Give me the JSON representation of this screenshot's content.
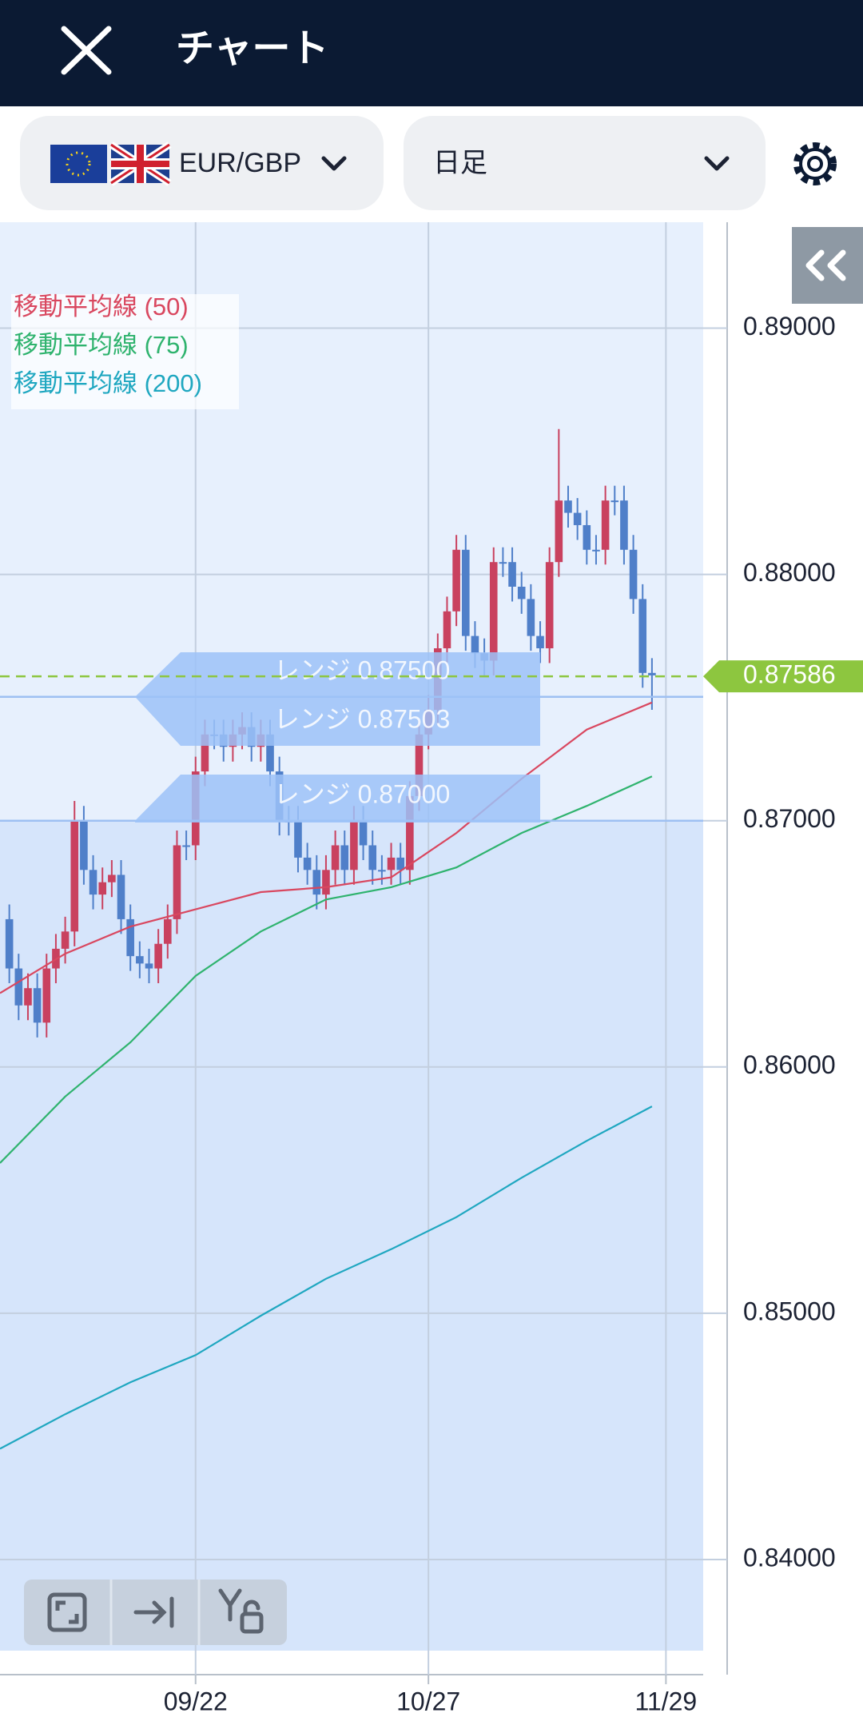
{
  "header": {
    "title": "チャート"
  },
  "toolbar": {
    "pair": "EUR/GBP",
    "timeframe": "日足"
  },
  "chart_data": {
    "type": "candlestick",
    "up_color": "#c9415f",
    "down_color": "#4f7fc9",
    "open": [
      0.866,
      0.864,
      0.8625,
      0.8632,
      0.8618,
      0.864,
      0.8648,
      0.8655,
      0.87,
      0.868,
      0.867,
      0.8675,
      0.8678,
      0.866,
      0.8645,
      0.8642,
      0.864,
      0.865,
      0.866,
      0.869,
      0.869,
      0.872,
      0.8735,
      0.8735,
      0.873,
      0.8735,
      0.8738,
      0.873,
      0.8735,
      0.872,
      0.87,
      0.87,
      0.8685,
      0.868,
      0.867,
      0.868,
      0.869,
      0.868,
      0.87,
      0.869,
      0.868,
      0.868,
      0.8685,
      0.868,
      0.871,
      0.8735,
      0.8745,
      0.877,
      0.8785,
      0.881,
      0.8775,
      0.8768,
      0.8765,
      0.8805,
      0.8805,
      0.8795,
      0.879,
      0.8775,
      0.877,
      0.8805,
      0.883,
      0.8825,
      0.882,
      0.881,
      0.881,
      0.883,
      0.883,
      0.881,
      0.879,
      0.876
    ],
    "high": [
      0.8666,
      0.8646,
      0.8638,
      0.8638,
      0.8646,
      0.8654,
      0.8661,
      0.8708,
      0.8706,
      0.8686,
      0.8681,
      0.8684,
      0.8684,
      0.8666,
      0.8651,
      0.8648,
      0.8656,
      0.8666,
      0.8696,
      0.8696,
      0.8726,
      0.8741,
      0.8741,
      0.8741,
      0.8741,
      0.8744,
      0.8744,
      0.8741,
      0.8741,
      0.8726,
      0.8706,
      0.8706,
      0.8691,
      0.8686,
      0.8686,
      0.8696,
      0.8696,
      0.8706,
      0.8706,
      0.8696,
      0.8686,
      0.8691,
      0.8691,
      0.8716,
      0.8741,
      0.8751,
      0.8776,
      0.8791,
      0.8816,
      0.8816,
      0.8781,
      0.8774,
      0.8811,
      0.8811,
      0.8811,
      0.8801,
      0.8796,
      0.8781,
      0.8811,
      0.8859,
      0.8836,
      0.8831,
      0.8826,
      0.8816,
      0.8836,
      0.8836,
      0.8836,
      0.8816,
      0.8796,
      0.8766
    ],
    "low": [
      0.8634,
      0.8619,
      0.8619,
      0.8612,
      0.8612,
      0.8634,
      0.8642,
      0.8649,
      0.8674,
      0.8664,
      0.8664,
      0.8669,
      0.8654,
      0.8639,
      0.8636,
      0.8634,
      0.8634,
      0.8644,
      0.8654,
      0.8684,
      0.8684,
      0.8714,
      0.8729,
      0.8724,
      0.8724,
      0.8729,
      0.8724,
      0.8724,
      0.8714,
      0.8694,
      0.8694,
      0.8679,
      0.8674,
      0.8664,
      0.8664,
      0.8674,
      0.8674,
      0.8674,
      0.8684,
      0.8674,
      0.8674,
      0.8674,
      0.8674,
      0.8674,
      0.8704,
      0.8729,
      0.8739,
      0.8764,
      0.8779,
      0.8769,
      0.8762,
      0.8759,
      0.8759,
      0.8799,
      0.8789,
      0.8784,
      0.8769,
      0.8764,
      0.8764,
      0.8799,
      0.8819,
      0.8814,
      0.8804,
      0.8804,
      0.8804,
      0.8824,
      0.8804,
      0.8784,
      0.8754,
      0.8745
    ],
    "close": [
      0.864,
      0.8625,
      0.8632,
      0.8618,
      0.864,
      0.8648,
      0.8655,
      0.87,
      0.868,
      0.867,
      0.8675,
      0.8678,
      0.866,
      0.8645,
      0.8642,
      0.864,
      0.865,
      0.866,
      0.869,
      0.869,
      0.872,
      0.8735,
      0.8735,
      0.873,
      0.8735,
      0.8738,
      0.873,
      0.8735,
      0.872,
      0.87,
      0.87,
      0.8685,
      0.868,
      0.867,
      0.868,
      0.869,
      0.868,
      0.87,
      0.869,
      0.868,
      0.868,
      0.8685,
      0.868,
      0.871,
      0.8735,
      0.8745,
      0.877,
      0.8785,
      0.881,
      0.8775,
      0.8768,
      0.8765,
      0.8805,
      0.8805,
      0.8795,
      0.879,
      0.8775,
      0.877,
      0.8805,
      0.883,
      0.8825,
      0.882,
      0.881,
      0.881,
      0.883,
      0.883,
      0.881,
      0.879,
      0.876,
      0.8759
    ],
    "series": [
      {
        "name": "移動平均線 (50)",
        "color": "#d9475f",
        "x": [
          -1,
          6,
          13,
          20,
          27,
          34,
          41,
          48,
          55,
          62,
          69
        ],
        "values": [
          0.863,
          0.8646,
          0.8657,
          0.8664,
          0.8671,
          0.8673,
          0.8677,
          0.8695,
          0.8717,
          0.8737,
          0.8748
        ]
      },
      {
        "name": "移動平均線 (75)",
        "color": "#2fb36e",
        "x": [
          -1,
          6,
          13,
          20,
          27,
          34,
          41,
          48,
          55,
          62,
          69
        ],
        "values": [
          0.8561,
          0.8588,
          0.861,
          0.8637,
          0.8655,
          0.8668,
          0.8673,
          0.8681,
          0.8695,
          0.8706,
          0.8718
        ]
      },
      {
        "name": "移動平均線 (200)",
        "color": "#1fa7c0",
        "x": [
          -1,
          6,
          13,
          20,
          27,
          34,
          41,
          48,
          55,
          62,
          69
        ],
        "values": [
          0.8445,
          0.8459,
          0.8472,
          0.8483,
          0.8499,
          0.8514,
          0.8526,
          0.8539,
          0.8555,
          0.857,
          0.8584
        ]
      }
    ],
    "ranges": [
      {
        "value": 0.875,
        "label": "レンジ 0.87500"
      },
      {
        "value": 0.87503,
        "label": "レンジ 0.87503"
      },
      {
        "value": 0.87,
        "label": "レンジ 0.87000"
      }
    ],
    "current_price": 0.87586,
    "current_price_color": "#8dc63f",
    "xlim": [
      -1,
      74.5
    ],
    "xticks": [
      {
        "value": 20,
        "label": "09/22"
      },
      {
        "value": 45,
        "label": "10/27"
      },
      {
        "value": 70.5,
        "label": "11/29"
      }
    ],
    "ylim": [
      0.8363,
      0.8943
    ],
    "yticks": [
      {
        "value": 0.84,
        "label": "0.84000"
      },
      {
        "value": 0.85,
        "label": "0.85000"
      },
      {
        "value": 0.86,
        "label": "0.86000"
      },
      {
        "value": 0.87,
        "label": "0.87000"
      },
      {
        "value": 0.88,
        "label": "0.88000"
      },
      {
        "value": 0.89,
        "label": "0.89000"
      }
    ],
    "grid": true
  }
}
